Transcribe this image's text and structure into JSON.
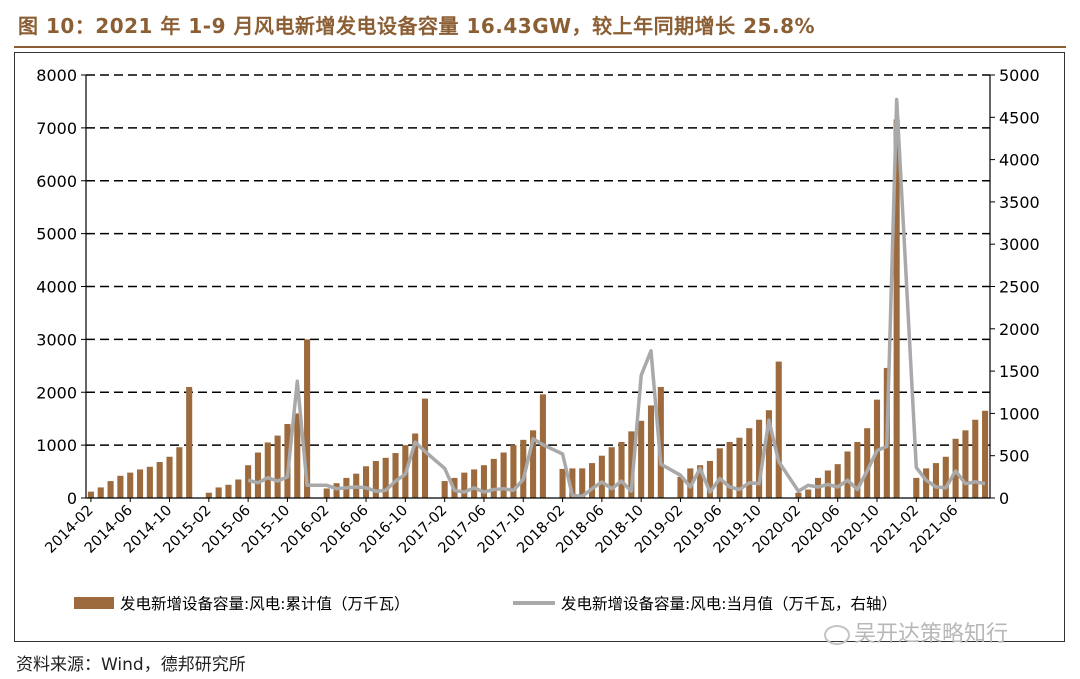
{
  "title": "图 10：2021 年 1-9 月风电新增发电设备容量 16.43GW，较上年同期增长 25.8%",
  "source": "资料来源：Wind，德邦研究所",
  "watermark": "吴开达策略知行",
  "colors": {
    "bar": "#9C6A3C",
    "line": "#A9A9A9",
    "title": "#8B5E34"
  },
  "chart_data": {
    "type": "bar",
    "x_tick_labels": [
      "2014-02",
      "2014-06",
      "2014-10",
      "2015-02",
      "2015-06",
      "2015-10",
      "2016-02",
      "2016-06",
      "2016-10",
      "2017-02",
      "2017-06",
      "2017-10",
      "2018-02",
      "2018-06",
      "2018-10",
      "2019-02",
      "2019-06",
      "2019-10",
      "2020-02",
      "2020-06",
      "2020-10",
      "2021-02",
      "2021-06"
    ],
    "ylim": [
      0,
      8000
    ],
    "y2lim": [
      0,
      5000
    ],
    "yticks": [
      "0",
      "1000",
      "2000",
      "3000",
      "4000",
      "5000",
      "6000",
      "7000",
      "8000"
    ],
    "y2ticks": [
      "0",
      "500",
      "1000",
      "1500",
      "2000",
      "2500",
      "3000",
      "3500",
      "4000",
      "4500",
      "5000"
    ],
    "grid": "horizontal dashed",
    "legend_position": "bottom",
    "series": [
      {
        "name": "发电新增设备容量:风电:累计值（万千瓦）",
        "type": "bar",
        "axis": "left",
        "x": [
          "2014-02",
          "2014-03",
          "2014-04",
          "2014-05",
          "2014-06",
          "2014-07",
          "2014-08",
          "2014-09",
          "2014-10",
          "2014-11",
          "2014-12",
          "2015-02",
          "2015-03",
          "2015-04",
          "2015-05",
          "2015-06",
          "2015-07",
          "2015-08",
          "2015-09",
          "2015-10",
          "2015-11",
          "2015-12",
          "2016-02",
          "2016-03",
          "2016-04",
          "2016-05",
          "2016-06",
          "2016-07",
          "2016-08",
          "2016-09",
          "2016-10",
          "2016-11",
          "2016-12",
          "2017-02",
          "2017-03",
          "2017-04",
          "2017-05",
          "2017-06",
          "2017-07",
          "2017-08",
          "2017-09",
          "2017-10",
          "2017-11",
          "2017-12",
          "2018-02",
          "2018-03",
          "2018-04",
          "2018-05",
          "2018-06",
          "2018-07",
          "2018-08",
          "2018-09",
          "2018-10",
          "2018-11",
          "2018-12",
          "2019-02",
          "2019-03",
          "2019-04",
          "2019-05",
          "2019-06",
          "2019-07",
          "2019-08",
          "2019-09",
          "2019-10",
          "2019-11",
          "2019-12",
          "2020-02",
          "2020-03",
          "2020-04",
          "2020-05",
          "2020-06",
          "2020-07",
          "2020-08",
          "2020-09",
          "2020-10",
          "2020-11",
          "2020-12",
          "2021-02",
          "2021-03",
          "2021-04",
          "2021-05",
          "2021-06",
          "2021-07",
          "2021-08",
          "2021-09"
        ],
        "values": [
          120,
          200,
          320,
          420,
          480,
          540,
          590,
          680,
          780,
          960,
          2100,
          100,
          200,
          250,
          350,
          620,
          860,
          1050,
          1180,
          1400,
          1600,
          3000,
          180,
          280,
          380,
          460,
          600,
          700,
          760,
          850,
          1000,
          1220,
          1880,
          320,
          380,
          480,
          540,
          620,
          740,
          860,
          1000,
          1100,
          1280,
          1960,
          550,
          560,
          560,
          660,
          800,
          960,
          1060,
          1260,
          1460,
          1750,
          2100,
          400,
          560,
          620,
          700,
          940,
          1060,
          1140,
          1320,
          1480,
          1660,
          2580,
          100,
          160,
          380,
          520,
          640,
          880,
          1060,
          1320,
          1860,
          2460,
          7160,
          380,
          560,
          660,
          780,
          1120,
          1280,
          1480,
          1650
        ]
      },
      {
        "name": "发电新增设备容量:风电:当月值（万千瓦，右轴）",
        "type": "line",
        "axis": "right",
        "x": [
          "2015-06",
          "2015-07",
          "2015-08",
          "2015-09",
          "2015-10",
          "2015-11",
          "2015-12",
          "2016-02",
          "2016-03",
          "2016-04",
          "2016-05",
          "2016-06",
          "2016-07",
          "2016-08",
          "2016-09",
          "2016-10",
          "2016-11",
          "2016-12",
          "2017-02",
          "2017-03",
          "2017-04",
          "2017-05",
          "2017-06",
          "2017-07",
          "2017-08",
          "2017-09",
          "2017-10",
          "2017-11",
          "2017-12",
          "2018-02",
          "2018-03",
          "2018-04",
          "2018-05",
          "2018-06",
          "2018-07",
          "2018-08",
          "2018-09",
          "2018-10",
          "2018-11",
          "2018-12",
          "2019-02",
          "2019-03",
          "2019-04",
          "2019-05",
          "2019-06",
          "2019-07",
          "2019-08",
          "2019-09",
          "2019-10",
          "2019-11",
          "2019-12",
          "2020-02",
          "2020-03",
          "2020-04",
          "2020-05",
          "2020-06",
          "2020-07",
          "2020-08",
          "2020-09",
          "2020-10",
          "2020-11",
          "2020-12",
          "2021-02",
          "2021-03",
          "2021-04",
          "2021-05",
          "2021-06",
          "2021-07",
          "2021-08",
          "2021-09"
        ],
        "values": [
          210,
          180,
          240,
          200,
          250,
          1380,
          150,
          150,
          110,
          120,
          130,
          120,
          80,
          90,
          200,
          280,
          660,
          550,
          350,
          90,
          70,
          120,
          70,
          100,
          110,
          90,
          220,
          700,
          630,
          520,
          30,
          20,
          110,
          190,
          110,
          200,
          80,
          1450,
          1740,
          400,
          270,
          130,
          350,
          70,
          230,
          130,
          100,
          180,
          170,
          920,
          430,
          80,
          150,
          130,
          160,
          130,
          210,
          100,
          320,
          560,
          610,
          4710,
          360,
          210,
          130,
          120,
          320,
          170,
          190,
          170
        ]
      }
    ]
  }
}
